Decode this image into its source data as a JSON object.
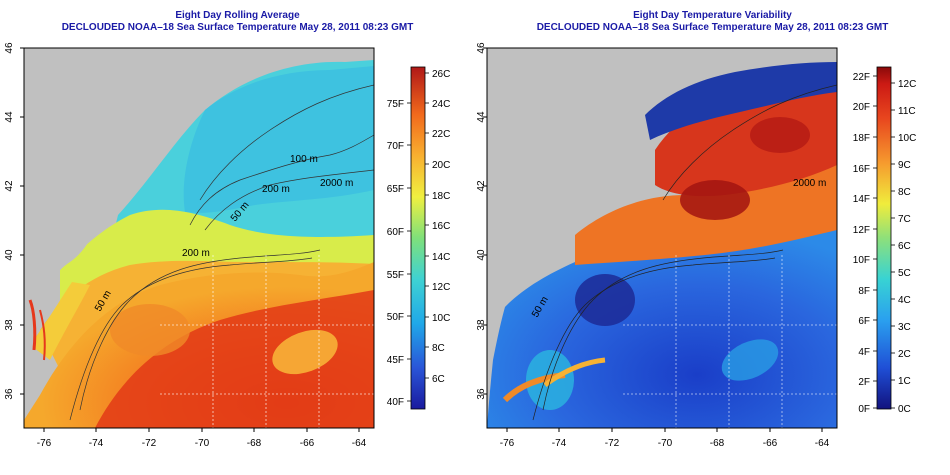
{
  "left_panel": {
    "title_line1": "Eight Day Rolling Average",
    "title_line2": "DECLOUDED NOAA–18 Sea Surface Temperature May 28, 2011 08:23 GMT",
    "x_ticks": [
      "-76",
      "-74",
      "-72",
      "-70",
      "-68",
      "-66",
      "-64"
    ],
    "y_ticks": [
      "46",
      "44",
      "42",
      "40",
      "38",
      "36"
    ],
    "contour_labels": [
      "100 m",
      "200 m",
      "2000 m",
      "50 m",
      "200 m",
      "50 m"
    ],
    "colorbar_c": [
      "26C",
      "24C",
      "22C",
      "20C",
      "18C",
      "16C",
      "14C",
      "12C",
      "10C",
      "8C",
      "6C"
    ],
    "colorbar_f": [
      "75F",
      "70F",
      "65F",
      "60F",
      "55F",
      "50F",
      "45F",
      "40F"
    ]
  },
  "right_panel": {
    "title_line1": "Eight Day Temperature Variability",
    "title_line2": "DECLOUDED NOAA–18 Sea Surface Temperature May 28, 2011 08:23 GMT",
    "x_ticks": [
      "-76",
      "-74",
      "-72",
      "-70",
      "-68",
      "-66",
      "-64"
    ],
    "y_ticks": [
      "46",
      "44",
      "42",
      "40",
      "38",
      "36"
    ],
    "contour_labels": [
      "2000 m",
      "50 m"
    ],
    "colorbar_c": [
      "12C",
      "11C",
      "10C",
      "9C",
      "8C",
      "7C",
      "6C",
      "5C",
      "4C",
      "3C",
      "2C",
      "1C",
      "0C"
    ],
    "colorbar_f": [
      "22F",
      "20F",
      "18F",
      "16F",
      "14F",
      "12F",
      "10F",
      "8F",
      "6F",
      "4F",
      "2F",
      "0F"
    ]
  },
  "colors": {
    "land": "#c0c0c0",
    "title": "#1a1aa6",
    "sst_scale": [
      "#1a1a9e",
      "#2a55d8",
      "#20a8e8",
      "#3fd2d2",
      "#7fe07a",
      "#f0f040",
      "#f8b030",
      "#f26a1c",
      "#e62a14",
      "#b01818"
    ],
    "variability_scale": [
      "#12127e",
      "#1f4fd6",
      "#2aa0ef",
      "#38d3d3",
      "#8ee07a",
      "#f0ec3c",
      "#f69a2e",
      "#e8461e",
      "#cc1a14",
      "#8a0a0a"
    ]
  }
}
